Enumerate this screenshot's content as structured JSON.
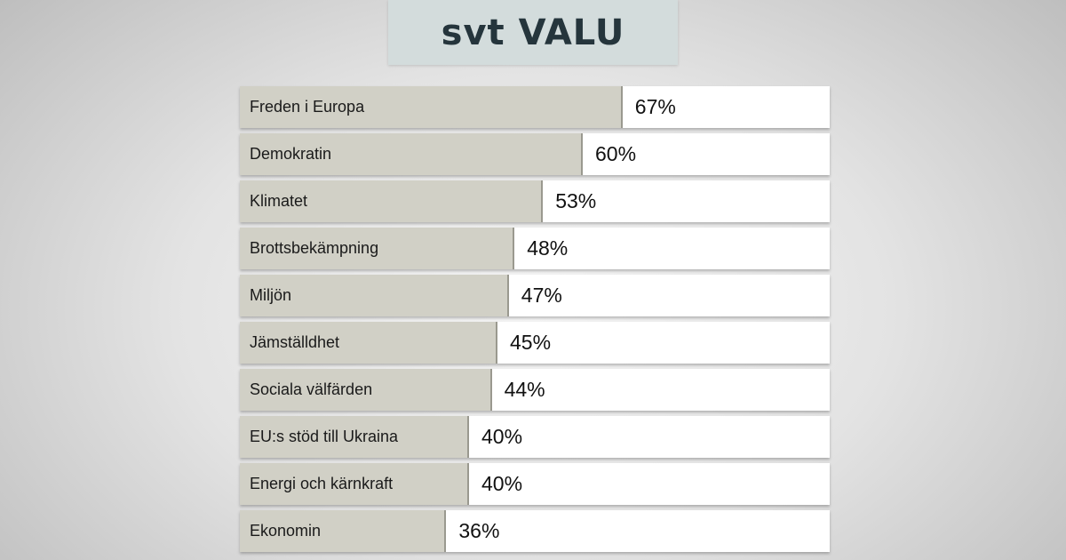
{
  "header": {
    "logo_text": "svt VALU"
  },
  "chart_data": {
    "type": "bar",
    "orientation": "horizontal",
    "categories": [
      "Freden i Europa",
      "Demokratin",
      "Klimatet",
      "Brottsbekämpning",
      "Miljön",
      "Jämställdhet",
      "Sociala välfärden",
      "EU:s stöd till Ukraina",
      "Energi och kärnkraft",
      "Ekonomin"
    ],
    "values": [
      67,
      60,
      53,
      48,
      47,
      45,
      44,
      40,
      40,
      36
    ],
    "value_labels": [
      "67%",
      "60%",
      "53%",
      "48%",
      "47%",
      "45%",
      "44%",
      "40%",
      "40%",
      "36%"
    ],
    "colors": {
      "bar": "#d1d0c6",
      "track": "#ffffff",
      "divider": "#9a998f"
    }
  }
}
